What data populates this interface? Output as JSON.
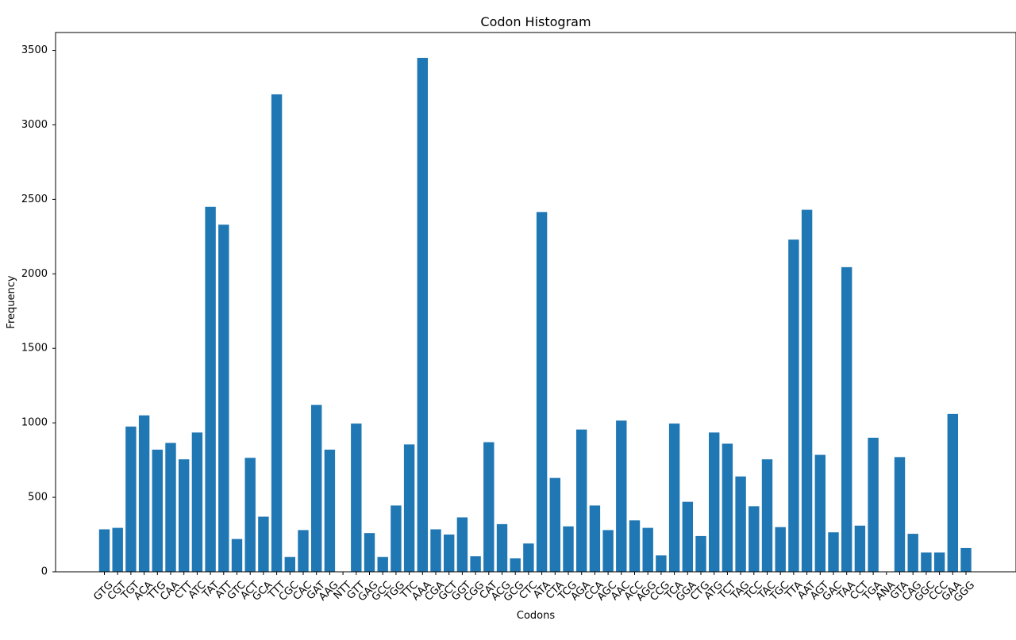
{
  "chart_data": {
    "type": "bar",
    "title": "Codon Histogram",
    "xlabel": "Codons",
    "ylabel": "Frequency",
    "ylim": [
      0,
      3620
    ],
    "yticks": [
      0,
      500,
      1000,
      1500,
      2000,
      2500,
      3000,
      3500
    ],
    "bar_color": "#1f77b4",
    "grid": false,
    "categories": [
      "GTG",
      "CGT",
      "TGT",
      "ACA",
      "TTG",
      "CAA",
      "CTT",
      "ATC",
      "TAT",
      "ATT",
      "GTC",
      "ACT",
      "GCA",
      "TTT",
      "CGC",
      "CAC",
      "GAT",
      "AAG",
      "NTT",
      "GTT",
      "GAG",
      "GCC",
      "TGG",
      "TTC",
      "AAA",
      "CGA",
      "GCT",
      "GGT",
      "CGG",
      "CAT",
      "ACG",
      "GCG",
      "CTC",
      "ATA",
      "CTA",
      "TCG",
      "AGA",
      "CCA",
      "AGC",
      "AAC",
      "ACC",
      "AGG",
      "CCG",
      "TCA",
      "GGA",
      "CTG",
      "ATG",
      "TCT",
      "TAG",
      "TCC",
      "TAC",
      "TGC",
      "TTA",
      "AAT",
      "AGT",
      "GAC",
      "TAA",
      "CCT",
      "TGA",
      "ANA",
      "GTA",
      "CAG",
      "GGC",
      "CCC",
      "GAA",
      "GGG"
    ],
    "values": [
      285,
      295,
      975,
      1050,
      820,
      865,
      755,
      935,
      2450,
      2330,
      220,
      765,
      370,
      3205,
      100,
      280,
      1120,
      820,
      1,
      995,
      260,
      100,
      445,
      855,
      3450,
      285,
      250,
      365,
      105,
      870,
      320,
      90,
      190,
      2415,
      630,
      305,
      955,
      445,
      280,
      1015,
      345,
      295,
      110,
      995,
      470,
      240,
      935,
      860,
      640,
      440,
      755,
      300,
      2230,
      2430,
      785,
      265,
      2045,
      310,
      900,
      1,
      770,
      255,
      130,
      130,
      1060,
      160
    ]
  }
}
